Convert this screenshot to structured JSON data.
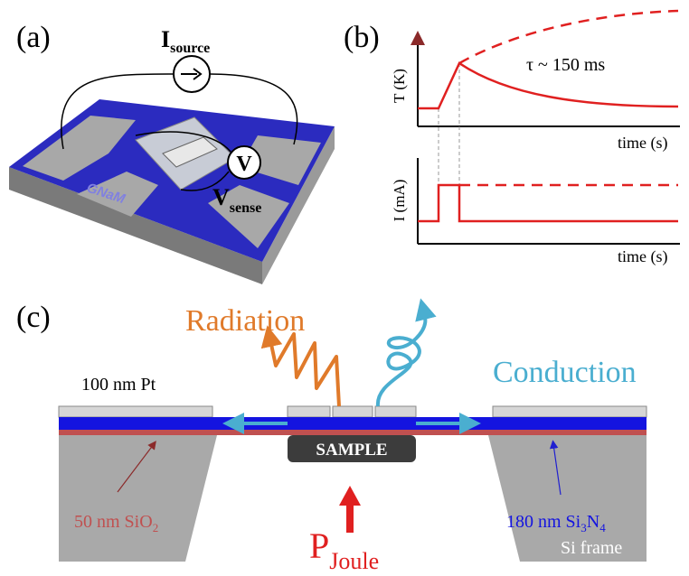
{
  "panel_a": {
    "label": "(a)",
    "current_source": {
      "symbol": "I",
      "subscript": "source"
    },
    "voltmeter": "V",
    "voltage_sense": {
      "symbol": "V",
      "subscript": "sense"
    },
    "chip_logo": "GNaM"
  },
  "panel_b": {
    "label": "(b)",
    "top_plot": {
      "y_label": "T (K)",
      "x_label": "time (s)",
      "annotation": "τ ~ 150 ms"
    },
    "bottom_plot": {
      "y_label": "I (mA)",
      "x_label": "time (s)"
    }
  },
  "panel_c": {
    "label": "(c)",
    "radiation": "Radiation",
    "conduction": "Conduction",
    "pt_layer": "100 nm Pt",
    "sample": "SAMPLE",
    "sio2_layer": {
      "text": "50 nm SiO",
      "subscript": "2"
    },
    "sin_layer": {
      "text": "180 nm Si",
      "sub1": "3",
      "mid": "N",
      "sub2": "4"
    },
    "frame": "Si frame",
    "power": {
      "symbol": "P",
      "subscript": "Joule"
    }
  }
}
